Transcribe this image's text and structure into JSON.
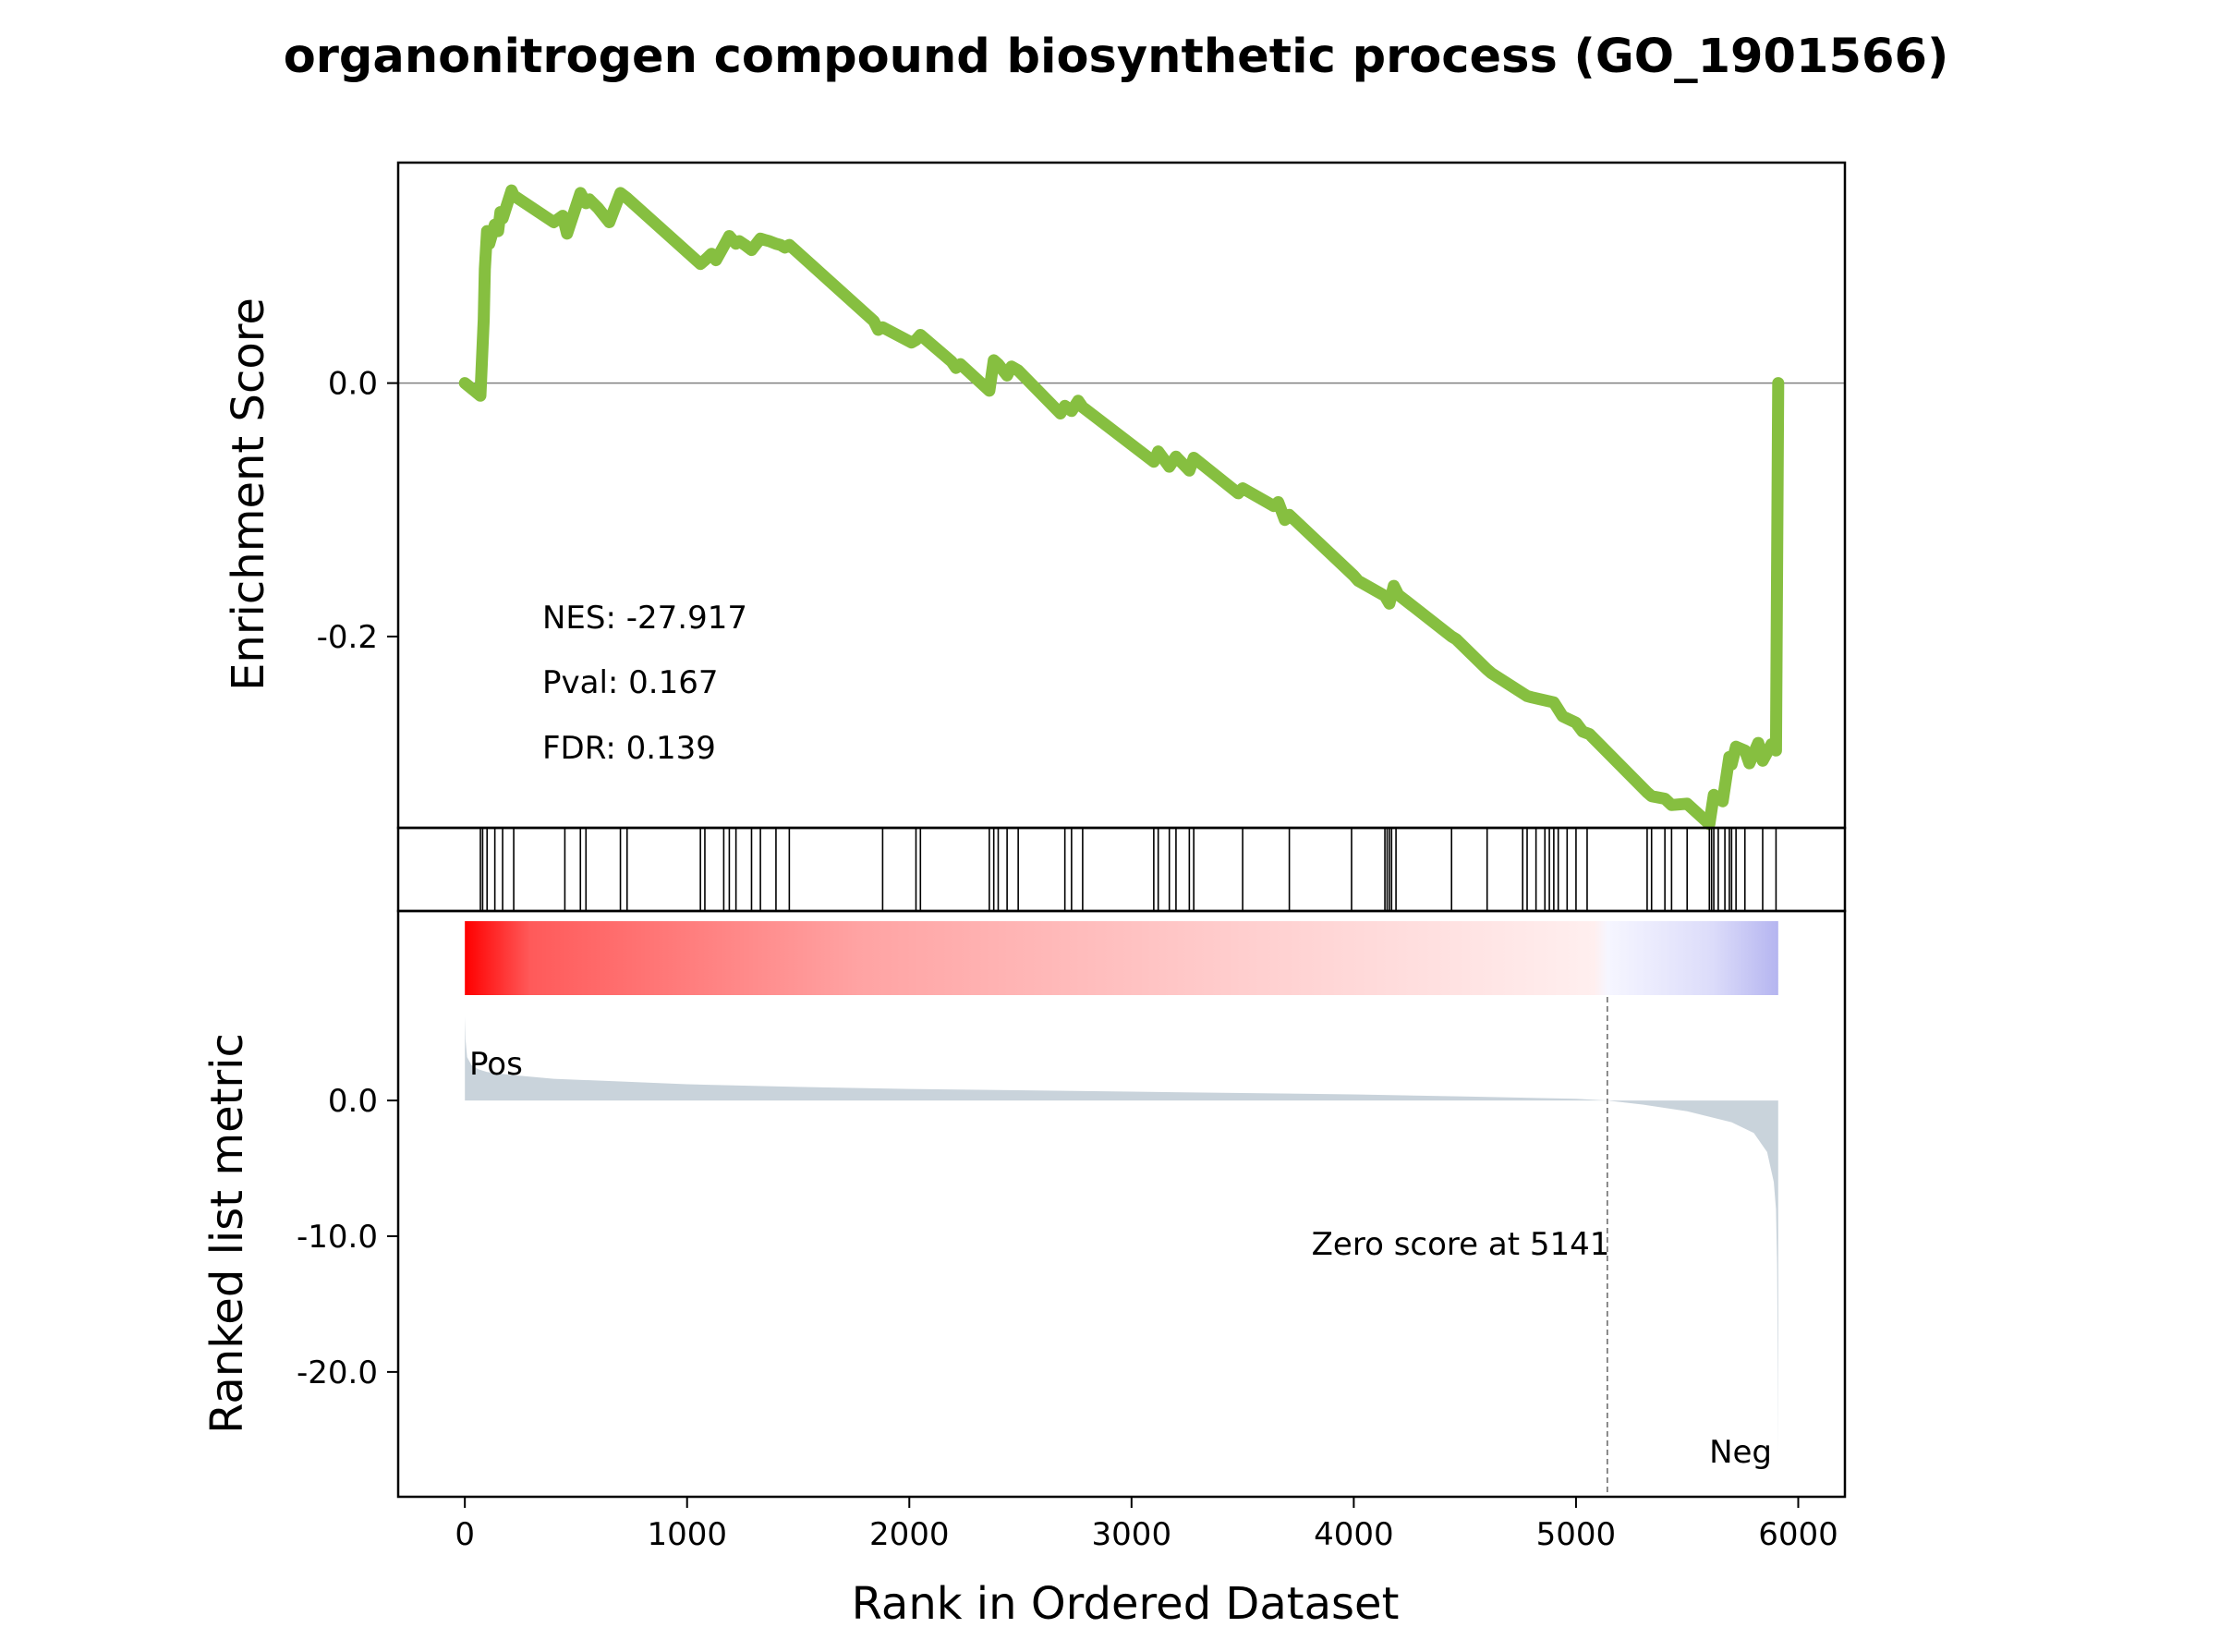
{
  "chart_data": {
    "type": "line",
    "title": "organonitrogen compound biosynthetic process (GO_1901566)",
    "stats": {
      "nes": "NES: -27.917",
      "pval": "Pval: 0.167",
      "fdr": "FDR: 0.139"
    },
    "enrichment_panel": {
      "ylabel": "Enrichment Score",
      "yticks": [
        0.0,
        -0.2
      ],
      "ytick_labels": [
        "0.0",
        "-0.2"
      ],
      "ylim": [
        -0.351,
        0.174
      ],
      "line_color": "#86bf40",
      "series": [
        {
          "x": [
            0,
            70,
            80,
            85,
            90,
            100,
            110,
            135,
            150,
            160,
            170,
            210,
            220,
            400,
            440,
            460,
            520,
            545,
            560,
            600,
            650,
            700,
            730,
            1060,
            1080,
            1110,
            1130,
            1165,
            1190,
            1220,
            1235,
            1260,
            1290,
            1330,
            1350,
            1370,
            1400,
            1420,
            1440,
            1460,
            1840,
            1860,
            1880,
            2010,
            2030,
            2050,
            2190,
            2210,
            2230,
            2360,
            2380,
            2400,
            2440,
            2460,
            2490,
            2680,
            2700,
            2730,
            2760,
            2780,
            3100,
            3120,
            3170,
            3200,
            3260,
            3280,
            3480,
            3500,
            3640,
            3660,
            3690,
            3710,
            4000,
            4020,
            4140,
            4160,
            4180,
            4200,
            4440,
            4460,
            4600,
            4620,
            4780,
            4800,
            4900,
            4940,
            5000,
            5030,
            5060,
            5320,
            5340,
            5400,
            5430,
            5500,
            5600,
            5620,
            5640,
            5660,
            5690,
            5700,
            5720,
            5760,
            5780,
            5820,
            5840,
            5880,
            5900,
            5910
          ],
          "y": [
            0.0,
            -0.01,
            0.03,
            0.05,
            0.09,
            0.12,
            0.11,
            0.125,
            0.12,
            0.135,
            0.13,
            0.152,
            0.148,
            0.127,
            0.132,
            0.118,
            0.15,
            0.142,
            0.145,
            0.138,
            0.127,
            0.15,
            0.146,
            0.094,
            0.097,
            0.102,
            0.097,
            0.108,
            0.116,
            0.11,
            0.112,
            0.109,
            0.105,
            0.114,
            0.113,
            0.112,
            0.11,
            0.109,
            0.107,
            0.109,
            0.049,
            0.042,
            0.044,
            0.032,
            0.034,
            0.038,
            0.017,
            0.012,
            0.015,
            -0.006,
            0.018,
            0.015,
            0.006,
            0.013,
            0.01,
            -0.024,
            -0.018,
            -0.022,
            -0.014,
            -0.019,
            -0.062,
            -0.054,
            -0.066,
            -0.058,
            -0.069,
            -0.059,
            -0.087,
            -0.083,
            -0.097,
            -0.094,
            -0.108,
            -0.104,
            -0.152,
            -0.156,
            -0.168,
            -0.174,
            -0.16,
            -0.167,
            -0.2,
            -0.202,
            -0.226,
            -0.229,
            -0.247,
            -0.248,
            -0.252,
            -0.263,
            -0.268,
            -0.275,
            -0.277,
            -0.323,
            -0.326,
            -0.328,
            -0.333,
            -0.332,
            -0.348,
            -0.325,
            -0.328,
            -0.33,
            -0.295,
            -0.301,
            -0.287,
            -0.29,
            -0.3,
            -0.284,
            -0.298,
            -0.285,
            -0.29,
            0.0
          ]
        }
      ]
    },
    "hits_panel": {
      "positions": [
        70,
        80,
        100,
        135,
        170,
        220,
        450,
        520,
        545,
        700,
        730,
        1060,
        1080,
        1165,
        1190,
        1220,
        1290,
        1330,
        1400,
        1460,
        1880,
        2030,
        2050,
        2360,
        2380,
        2400,
        2440,
        2490,
        2700,
        2730,
        2780,
        3100,
        3120,
        3170,
        3200,
        3260,
        3280,
        3500,
        3710,
        3990,
        4140,
        4150,
        4160,
        4170,
        4190,
        4440,
        4600,
        4760,
        4780,
        4820,
        4860,
        4880,
        4900,
        4920,
        4960,
        5000,
        5050,
        5320,
        5340,
        5400,
        5430,
        5500,
        5600,
        5610,
        5620,
        5640,
        5670,
        5690,
        5700,
        5720,
        5760,
        5840,
        5900
      ]
    },
    "metric_panel": {
      "ylabel": "Ranked list metric",
      "yticks": [
        0.0,
        -10.0,
        -20.0
      ],
      "ytick_labels": [
        "0.0",
        "-10.0",
        "-20.0"
      ],
      "ylim": [
        -27.7,
        6.2
      ],
      "fill_color": "#c9d3db",
      "x": [
        0,
        3,
        10,
        30,
        60,
        100,
        200,
        400,
        700,
        1000,
        1500,
        2000,
        3000,
        4000,
        4500,
        5000,
        5141,
        5300,
        5500,
        5700,
        5800,
        5860,
        5890,
        5900,
        5905,
        5908,
        5910
      ],
      "y": [
        6.2,
        4.5,
        3.2,
        2.6,
        2.3,
        2.1,
        1.9,
        1.6,
        1.4,
        1.2,
        1.0,
        0.85,
        0.65,
        0.45,
        0.3,
        0.12,
        0.0,
        -0.3,
        -0.8,
        -1.6,
        -2.4,
        -3.8,
        -6.0,
        -8.0,
        -12.0,
        -20.0,
        -26.0
      ],
      "zero_score_label": "Zero score at 5141",
      "zero_score_rank": 5141,
      "pos_label": "Pos",
      "neg_label": "Neg",
      "pos_color": "#ff0000",
      "neg_color": "#0000ff"
    },
    "xlabel": "Rank in Ordered Dataset",
    "xticks": [
      0,
      1000,
      2000,
      3000,
      4000,
      5000,
      6000
    ],
    "xtick_labels": [
      "0",
      "1000",
      "2000",
      "3000",
      "4000",
      "5000",
      "6000"
    ],
    "xlim": [
      -300,
      6210
    ],
    "n_genes": 5910
  }
}
